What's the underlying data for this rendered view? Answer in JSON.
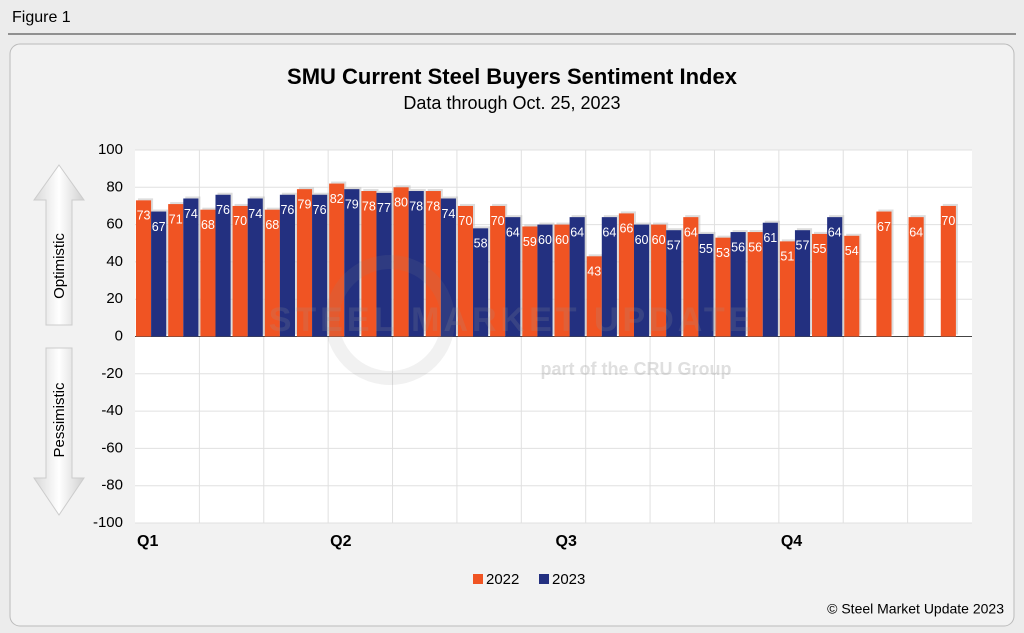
{
  "figure_label": "Figure 1",
  "copyright": "© Steel Market Update 2023",
  "watermark": {
    "brand": "STEEL MARKET UPDATE",
    "tagline": "part of the CRU Group"
  },
  "side_labels": {
    "up": "Optimistic",
    "down": "Pessimistic"
  },
  "chart_data": {
    "type": "bar",
    "title": "SMU Current Steel Buyers Sentiment Index",
    "subtitle": "Data through Oct. 25, 2023",
    "categories": [
      "Q1",
      null,
      null,
      null,
      null,
      null,
      "Q2",
      null,
      null,
      null,
      null,
      null,
      null,
      "Q3",
      null,
      null,
      null,
      null,
      null,
      null,
      "Q4",
      null,
      null,
      null,
      null,
      null
    ],
    "series": [
      {
        "name": "2022",
        "color": "#f05423",
        "values": [
          73,
          71,
          68,
          70,
          68,
          79,
          82,
          78,
          80,
          78,
          70,
          70,
          59,
          60,
          43,
          66,
          60,
          64,
          53,
          56,
          51,
          55,
          54,
          67,
          64,
          70
        ]
      },
      {
        "name": "2023",
        "color": "#233080",
        "values": [
          67,
          74,
          76,
          74,
          76,
          76,
          79,
          77,
          78,
          74,
          58,
          64,
          60,
          64,
          64,
          60,
          57,
          55,
          56,
          61,
          57,
          64,
          null,
          null,
          null,
          null
        ]
      }
    ],
    "ylim": [
      -100,
      100
    ],
    "yticks": [
      -100,
      -80,
      -60,
      -40,
      -20,
      0,
      20,
      40,
      60,
      80,
      100
    ],
    "grid": true,
    "legend": "bottom"
  }
}
